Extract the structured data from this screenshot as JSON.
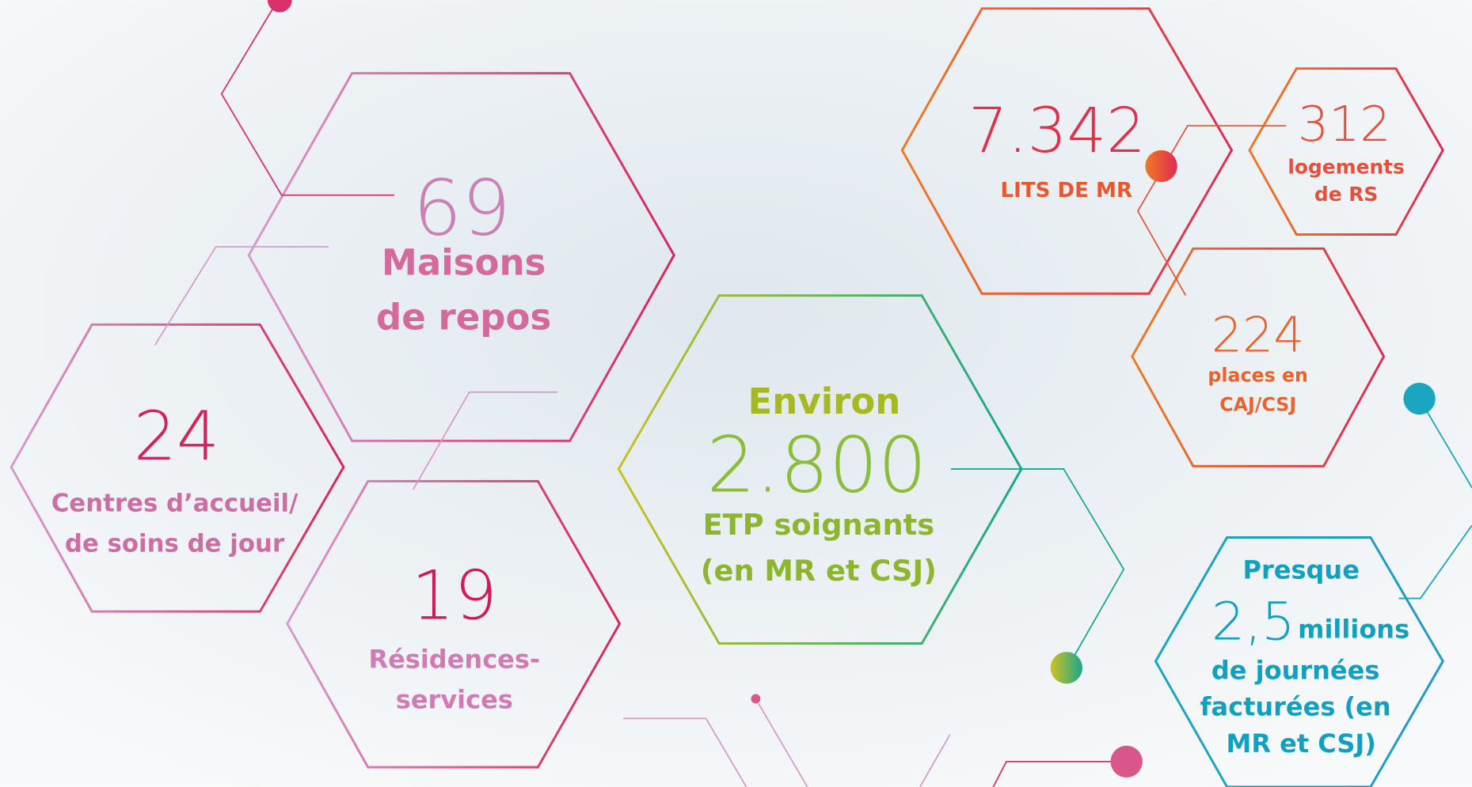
{
  "stats": [
    {
      "number": "69",
      "label": [
        "Maisons",
        "de repos"
      ]
    },
    {
      "number": "24",
      "label": [
        "Centres d’accueil/",
        "de soins de jour"
      ]
    },
    {
      "number": "19",
      "label": [
        "Résidences-",
        "services"
      ]
    },
    {
      "prefix": "Environ",
      "number": "2.800",
      "label": [
        "ETP soignants",
        "(en MR et CSJ)"
      ]
    },
    {
      "number": "7.342",
      "label": [
        "LITS DE MR"
      ]
    },
    {
      "number": "312",
      "label": [
        "logements",
        "de RS"
      ]
    },
    {
      "number": "224",
      "label": [
        "places en",
        "CAJ/CSJ"
      ]
    },
    {
      "prefix": "Presque",
      "number": "2,5",
      "suffix": "millions",
      "label": [
        "de journées",
        "facturées (en",
        "MR et CSJ)"
      ]
    }
  ]
}
